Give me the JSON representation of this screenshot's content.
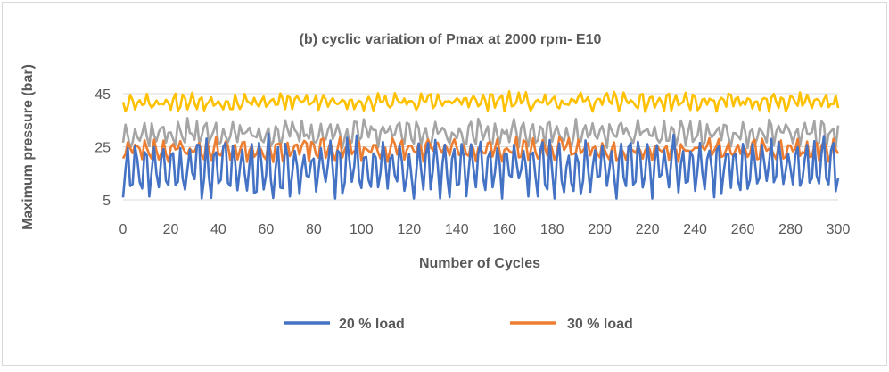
{
  "chart_data": {
    "type": "line",
    "title": "(b) cyclic variation of Pmax at 2000 rpm- E10",
    "xlabel": "Number of Cycles",
    "ylabel": "Maximum pressure (bar)",
    "xlim": [
      0,
      300
    ],
    "ylim": [
      5,
      45
    ],
    "x_ticks": [
      "0",
      "20",
      "40",
      "60",
      "80",
      "100",
      "120",
      "140",
      "160",
      "180",
      "200",
      "220",
      "240",
      "260",
      "280",
      "300"
    ],
    "y_ticks": [
      "5",
      "25",
      "45"
    ],
    "x_tick_values": [
      0,
      20,
      40,
      60,
      80,
      100,
      120,
      140,
      160,
      180,
      200,
      220,
      240,
      260,
      280,
      300
    ],
    "y_tick_values": [
      5,
      25,
      45
    ],
    "grid": true,
    "legend_position": "bottom",
    "series": [
      {
        "name": "20 % load",
        "color": "#4472C4",
        "legend": true,
        "base": 17,
        "amp": 9,
        "noise": 4,
        "seed": 11
      },
      {
        "name": "30 % load",
        "color": "#ED7D31",
        "legend": true,
        "base": 24,
        "amp": 2.5,
        "noise": 2.5,
        "seed": 23
      },
      {
        "color": "#A5A5A5",
        "legend": false,
        "base": 30,
        "amp": 3,
        "noise": 3,
        "seed": 37
      },
      {
        "color": "#FFC000",
        "legend": false,
        "base": 42,
        "amp": 2,
        "noise": 2,
        "seed": 53
      }
    ]
  }
}
